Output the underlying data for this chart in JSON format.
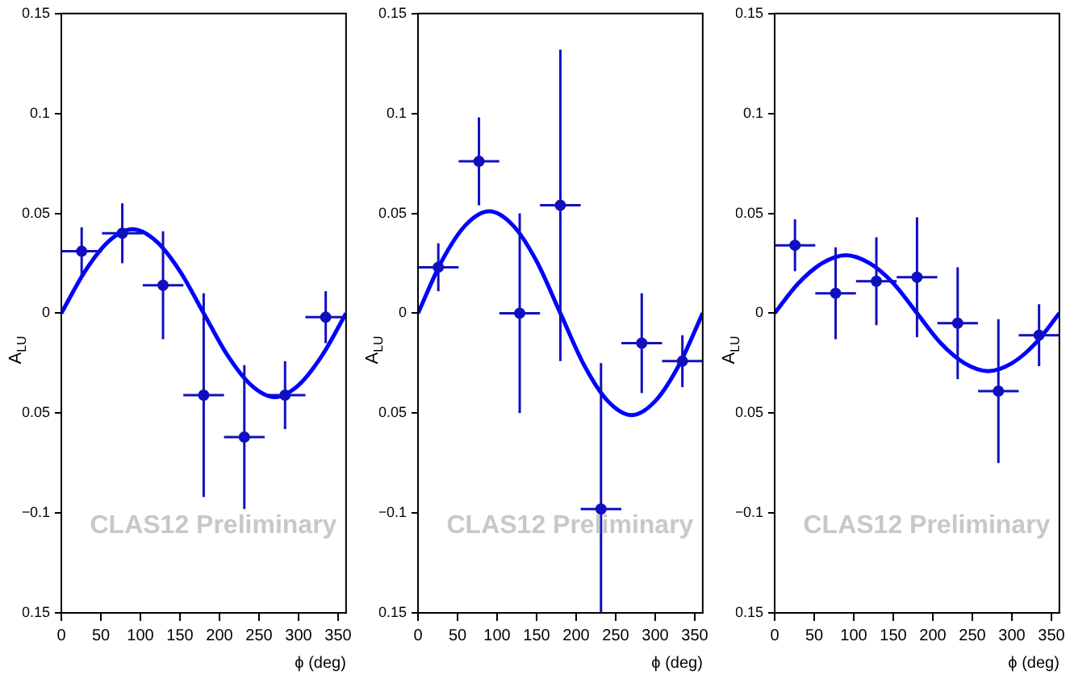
{
  "chart_data": [
    {
      "type": "scatter",
      "xlabel": "ϕ (deg)",
      "ylabel": "A$_{LU}$",
      "annotations": [
        "CLAS12 Preliminary"
      ],
      "xlim": [
        0,
        360
      ],
      "xticks": [
        0,
        50,
        100,
        150,
        200,
        250,
        300,
        350
      ],
      "ylim": [
        -0.15,
        0.15
      ],
      "yticks": [
        {
          "value": -0.15,
          "label": "0.15"
        },
        {
          "value": -0.1,
          "label": "−0.1"
        },
        {
          "value": -0.05,
          "label": "0.05"
        },
        0,
        0.05,
        0.1,
        0.15
      ],
      "grid": false,
      "legend": false,
      "series": [
        {
          "type": "scatter",
          "color": "#1010c0",
          "x": [
            25.7,
            77.1,
            128.6,
            180,
            231.4,
            282.9,
            334.3
          ],
          "values": [
            0.031,
            0.04,
            0.014,
            -0.041,
            -0.062,
            -0.041,
            -0.002
          ],
          "errors": [
            0.012,
            0.015,
            0.027,
            0.051,
            0.036,
            0.017,
            0.013
          ],
          "xerrors": [
            25.7,
            25.7,
            25.7,
            25.7,
            25.7,
            25.7,
            25.7
          ]
        },
        {
          "type": "line",
          "color": "#0000ff",
          "x": [
            0,
            30,
            60,
            90,
            120,
            150,
            180,
            210,
            240,
            270,
            300,
            330,
            360
          ],
          "values": [
            0,
            0.021,
            0.036,
            0.042,
            0.036,
            0.021,
            0,
            -0.021,
            -0.036,
            -0.042,
            -0.036,
            -0.021,
            0
          ]
        }
      ]
    },
    {
      "type": "scatter",
      "xlabel": "ϕ (deg)",
      "ylabel": "A$_{LU}$",
      "annotations": [
        "CLAS12 Preliminary"
      ],
      "xlim": [
        0,
        360
      ],
      "xticks": [
        0,
        50,
        100,
        150,
        200,
        250,
        300,
        350
      ],
      "ylim": [
        -0.15,
        0.15
      ],
      "yticks": [
        {
          "value": -0.15,
          "label": "0.15"
        },
        {
          "value": -0.1,
          "label": "−0.1"
        },
        {
          "value": -0.05,
          "label": "0.05"
        },
        0,
        0.05,
        0.1,
        0.15
      ],
      "grid": false,
      "legend": false,
      "series": [
        {
          "type": "scatter",
          "color": "#1010c0",
          "x": [
            25.7,
            77.1,
            128.6,
            180,
            231.4,
            282.9,
            334.3
          ],
          "values": [
            0.023,
            0.076,
            0,
            0.054,
            -0.098,
            -0.015,
            -0.024
          ],
          "errors": [
            0.012,
            0.022,
            0.05,
            0.078,
            [
              -0.15,
              -0.025
            ],
            0.025,
            0.013
          ],
          "xerrors": [
            25.7,
            25.7,
            25.7,
            25.7,
            25.7,
            25.7,
            25.7
          ]
        },
        {
          "type": "line",
          "color": "#0000ff",
          "x": [
            0,
            30,
            60,
            90,
            120,
            150,
            180,
            210,
            240,
            270,
            300,
            330,
            360
          ],
          "values": [
            0,
            0.026,
            0.044,
            0.051,
            0.044,
            0.026,
            0,
            -0.026,
            -0.044,
            -0.051,
            -0.044,
            -0.026,
            0
          ]
        }
      ]
    },
    {
      "type": "scatter",
      "xlabel": "ϕ (deg)",
      "ylabel": "A$_{LU}$",
      "annotations": [
        "CLAS12 Preliminary"
      ],
      "xlim": [
        0,
        360
      ],
      "xticks": [
        0,
        50,
        100,
        150,
        200,
        250,
        300,
        350
      ],
      "ylim": [
        -0.15,
        0.15
      ],
      "yticks": [
        {
          "value": -0.15,
          "label": "0.15"
        },
        {
          "value": -0.1,
          "label": "−0.1"
        },
        {
          "value": -0.05,
          "label": "0.05"
        },
        0,
        0.05,
        0.1,
        0.15
      ],
      "grid": false,
      "legend": false,
      "series": [
        {
          "type": "scatter",
          "color": "#1010c0",
          "x": [
            25.7,
            77.1,
            128.6,
            180,
            231.4,
            282.9,
            334.3
          ],
          "values": [
            0.034,
            0.01,
            0.016,
            0.018,
            -0.005,
            -0.039,
            -0.011
          ],
          "errors": [
            0.013,
            0.023,
            0.022,
            0.03,
            0.028,
            0.036,
            0.0155
          ],
          "xerrors": [
            25.7,
            25.7,
            25.7,
            25.7,
            25.7,
            25.7,
            25.7
          ]
        },
        {
          "type": "line",
          "color": "#0000ff",
          "x": [
            0,
            30,
            60,
            90,
            120,
            150,
            180,
            210,
            240,
            270,
            300,
            330,
            360
          ],
          "values": [
            0,
            0.015,
            0.025,
            0.029,
            0.025,
            0.015,
            0,
            -0.015,
            -0.025,
            -0.029,
            -0.025,
            -0.015,
            0
          ]
        }
      ]
    }
  ]
}
